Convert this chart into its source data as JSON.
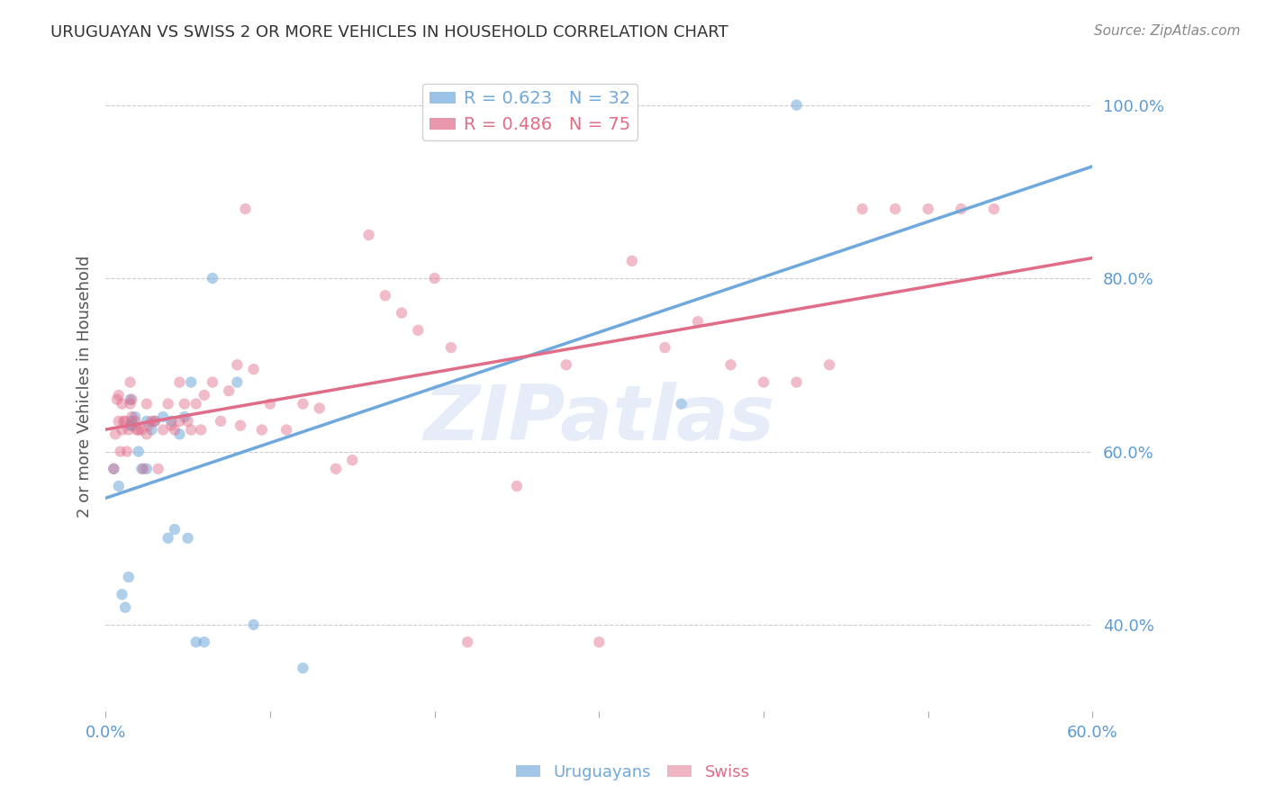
{
  "title": "URUGUAYAN VS SWISS 2 OR MORE VEHICLES IN HOUSEHOLD CORRELATION CHART",
  "source": "Source: ZipAtlas.com",
  "ylabel": "2 or more Vehicles in Household",
  "xlim": [
    0.0,
    0.6
  ],
  "ylim": [
    0.3,
    1.05
  ],
  "xticks": [
    0.0,
    0.1,
    0.2,
    0.3,
    0.4,
    0.5,
    0.6
  ],
  "yticks_right": [
    0.4,
    0.6,
    0.8,
    1.0
  ],
  "yticklabels_right": [
    "40.0%",
    "60.0%",
    "80.0%",
    "100.0%"
  ],
  "blue_color": "#6fa8dc",
  "pink_color": "#e06c88",
  "blue_R": 0.623,
  "blue_N": 32,
  "pink_R": 0.486,
  "pink_N": 75,
  "legend_label_blue": "Uruguayans",
  "legend_label_pink": "Swiss",
  "watermark": "ZIPatlas",
  "uruguayan_x": [
    0.005,
    0.008,
    0.01,
    0.012,
    0.014,
    0.015,
    0.015,
    0.016,
    0.016,
    0.018,
    0.02,
    0.022,
    0.025,
    0.025,
    0.028,
    0.03,
    0.035,
    0.038,
    0.04,
    0.042,
    0.045,
    0.048,
    0.05,
    0.052,
    0.055,
    0.06,
    0.065,
    0.08,
    0.09,
    0.12,
    0.35,
    0.42
  ],
  "uruguayan_y": [
    0.58,
    0.56,
    0.435,
    0.42,
    0.455,
    0.63,
    0.66,
    0.63,
    0.635,
    0.64,
    0.6,
    0.58,
    0.635,
    0.58,
    0.625,
    0.635,
    0.64,
    0.5,
    0.635,
    0.51,
    0.62,
    0.64,
    0.5,
    0.68,
    0.38,
    0.38,
    0.8,
    0.68,
    0.4,
    0.35,
    0.655,
    1.0
  ],
  "swiss_x": [
    0.005,
    0.006,
    0.007,
    0.008,
    0.008,
    0.009,
    0.01,
    0.01,
    0.011,
    0.012,
    0.013,
    0.014,
    0.015,
    0.015,
    0.016,
    0.016,
    0.018,
    0.019,
    0.02,
    0.022,
    0.023,
    0.025,
    0.025,
    0.026,
    0.028,
    0.03,
    0.032,
    0.035,
    0.038,
    0.04,
    0.042,
    0.045,
    0.045,
    0.048,
    0.05,
    0.052,
    0.055,
    0.058,
    0.06,
    0.065,
    0.07,
    0.075,
    0.08,
    0.082,
    0.085,
    0.09,
    0.095,
    0.1,
    0.11,
    0.12,
    0.13,
    0.14,
    0.15,
    0.16,
    0.17,
    0.18,
    0.19,
    0.2,
    0.21,
    0.22,
    0.25,
    0.28,
    0.3,
    0.32,
    0.34,
    0.36,
    0.38,
    0.4,
    0.42,
    0.44,
    0.46,
    0.48,
    0.5,
    0.52,
    0.54
  ],
  "swiss_y": [
    0.58,
    0.62,
    0.66,
    0.635,
    0.665,
    0.6,
    0.625,
    0.655,
    0.635,
    0.635,
    0.6,
    0.625,
    0.655,
    0.68,
    0.64,
    0.66,
    0.635,
    0.625,
    0.625,
    0.625,
    0.58,
    0.62,
    0.655,
    0.63,
    0.635,
    0.635,
    0.58,
    0.625,
    0.655,
    0.63,
    0.625,
    0.635,
    0.68,
    0.655,
    0.635,
    0.625,
    0.655,
    0.625,
    0.665,
    0.68,
    0.635,
    0.67,
    0.7,
    0.63,
    0.88,
    0.695,
    0.625,
    0.655,
    0.625,
    0.655,
    0.65,
    0.58,
    0.59,
    0.85,
    0.78,
    0.76,
    0.74,
    0.8,
    0.72,
    0.38,
    0.56,
    0.7,
    0.38,
    0.82,
    0.72,
    0.75,
    0.7,
    0.68,
    0.68,
    0.7,
    0.88,
    0.88,
    0.88,
    0.88,
    0.88
  ],
  "bg_color": "#ffffff",
  "grid_color": "#cccccc",
  "axis_color": "#5b9bd5",
  "marker_size": 80
}
